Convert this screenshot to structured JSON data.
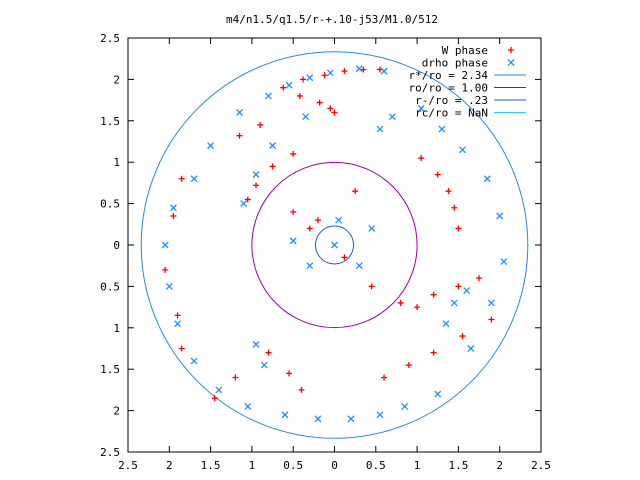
{
  "chart_data": {
    "type": "scatter",
    "title": "m4/n1.5/q1.5/r-+.10-j53/M1.0/512",
    "xlim": [
      -2.5,
      2.5
    ],
    "ylim": [
      -2.5,
      2.5
    ],
    "x_ticks": [
      -2.5,
      -2,
      -1.5,
      -1,
      -0.5,
      0,
      0.5,
      1,
      1.5,
      2,
      2.5
    ],
    "x_tick_labels": [
      "2.5",
      "2",
      "1.5",
      "1",
      "0.5",
      "0",
      "0.5",
      "1",
      "1.5",
      "2",
      "2.5"
    ],
    "y_ticks": [
      2.5,
      2,
      1.5,
      1,
      0.5,
      0,
      -0.5,
      -1,
      -1.5,
      -2,
      -2.5
    ],
    "y_tick_labels": [
      "2.5",
      "2",
      "1.5",
      "1",
      "0.5",
      "0",
      "0.5",
      "1",
      "1.5",
      "2",
      "2.5"
    ],
    "grid": false,
    "legend_position": "top-right",
    "series": [
      {
        "name": "W phase",
        "kind": "points",
        "marker": "plus",
        "color": "#ff0000",
        "points": [
          [
            0.55,
            2.12
          ],
          [
            0.35,
            2.12
          ],
          [
            0.12,
            2.1
          ],
          [
            -0.12,
            2.05
          ],
          [
            -0.38,
            2.0
          ],
          [
            -0.62,
            1.9
          ],
          [
            -0.42,
            1.8
          ],
          [
            -0.18,
            1.72
          ],
          [
            -0.05,
            1.65
          ],
          [
            0.0,
            1.6
          ],
          [
            -0.9,
            1.45
          ],
          [
            -1.15,
            1.32
          ],
          [
            -0.5,
            1.1
          ],
          [
            -0.75,
            0.95
          ],
          [
            -0.95,
            0.72
          ],
          [
            -1.05,
            0.55
          ],
          [
            -0.5,
            0.4
          ],
          [
            -0.3,
            0.2
          ],
          [
            1.05,
            1.05
          ],
          [
            1.25,
            0.85
          ],
          [
            1.38,
            0.65
          ],
          [
            1.45,
            0.45
          ],
          [
            1.5,
            0.2
          ],
          [
            0.12,
            -0.15
          ],
          [
            0.45,
            -0.5
          ],
          [
            0.8,
            -0.7
          ],
          [
            1.0,
            -0.75
          ],
          [
            1.2,
            -0.6
          ],
          [
            1.5,
            -0.5
          ],
          [
            1.75,
            -0.4
          ],
          [
            1.9,
            -0.9
          ],
          [
            -0.8,
            -1.3
          ],
          [
            -0.55,
            -1.55
          ],
          [
            -0.4,
            -1.75
          ],
          [
            -1.2,
            -1.6
          ],
          [
            -1.45,
            -1.85
          ],
          [
            -1.85,
            -1.25
          ],
          [
            -1.9,
            -0.85
          ],
          [
            -2.05,
            -0.3
          ],
          [
            -1.95,
            0.35
          ],
          [
            -1.85,
            0.8
          ],
          [
            0.6,
            -1.6
          ],
          [
            0.9,
            -1.45
          ],
          [
            1.2,
            -1.3
          ],
          [
            1.55,
            -1.1
          ],
          [
            -0.2,
            0.3
          ],
          [
            0.25,
            0.65
          ]
        ]
      },
      {
        "name": "drho phase",
        "kind": "points",
        "marker": "cross",
        "color": "#1e90ff",
        "points": [
          [
            0.6,
            2.1
          ],
          [
            0.3,
            2.13
          ],
          [
            -0.05,
            2.08
          ],
          [
            -0.3,
            2.02
          ],
          [
            -0.55,
            1.93
          ],
          [
            -0.8,
            1.8
          ],
          [
            -1.15,
            1.6
          ],
          [
            -1.5,
            1.2
          ],
          [
            -1.7,
            0.8
          ],
          [
            -1.95,
            0.45
          ],
          [
            -2.05,
            0.0
          ],
          [
            -2.0,
            -0.5
          ],
          [
            -1.9,
            -0.95
          ],
          [
            -1.7,
            -1.4
          ],
          [
            -1.4,
            -1.75
          ],
          [
            -1.05,
            -1.95
          ],
          [
            -0.6,
            -2.05
          ],
          [
            -0.2,
            -2.1
          ],
          [
            0.2,
            -2.1
          ],
          [
            0.55,
            -2.05
          ],
          [
            0.85,
            -1.95
          ],
          [
            1.25,
            -1.8
          ],
          [
            1.65,
            -1.25
          ],
          [
            1.9,
            -0.7
          ],
          [
            2.05,
            -0.2
          ],
          [
            2.0,
            0.35
          ],
          [
            1.85,
            0.8
          ],
          [
            1.55,
            1.15
          ],
          [
            1.3,
            1.4
          ],
          [
            1.05,
            1.65
          ],
          [
            0.7,
            1.55
          ],
          [
            0.55,
            1.4
          ],
          [
            -0.35,
            1.55
          ],
          [
            -0.75,
            1.2
          ],
          [
            -0.95,
            0.85
          ],
          [
            -1.1,
            0.5
          ],
          [
            0.0,
            0.0
          ],
          [
            0.05,
            0.3
          ],
          [
            -0.3,
            -0.25
          ],
          [
            0.3,
            -0.25
          ],
          [
            -0.5,
            0.05
          ],
          [
            0.45,
            0.2
          ],
          [
            1.35,
            -0.95
          ],
          [
            1.6,
            -0.55
          ],
          [
            1.45,
            -0.7
          ],
          [
            -0.85,
            -1.45
          ],
          [
            -0.95,
            -1.2
          ]
        ]
      },
      {
        "name": "r*/ro = 2.34",
        "kind": "circle",
        "radius": 2.34,
        "color": "#2a8ad4"
      },
      {
        "name": "ro/ro = 1.00",
        "kind": "circle",
        "radius": 1.0,
        "color": "#9900aa"
      },
      {
        "name": "r-/ro = .23",
        "kind": "circle",
        "radius": 0.23,
        "color": "#1c5fb5"
      },
      {
        "name": "rc/ro = NaN",
        "kind": "circle",
        "radius": null,
        "color": "#33ccee"
      }
    ]
  }
}
